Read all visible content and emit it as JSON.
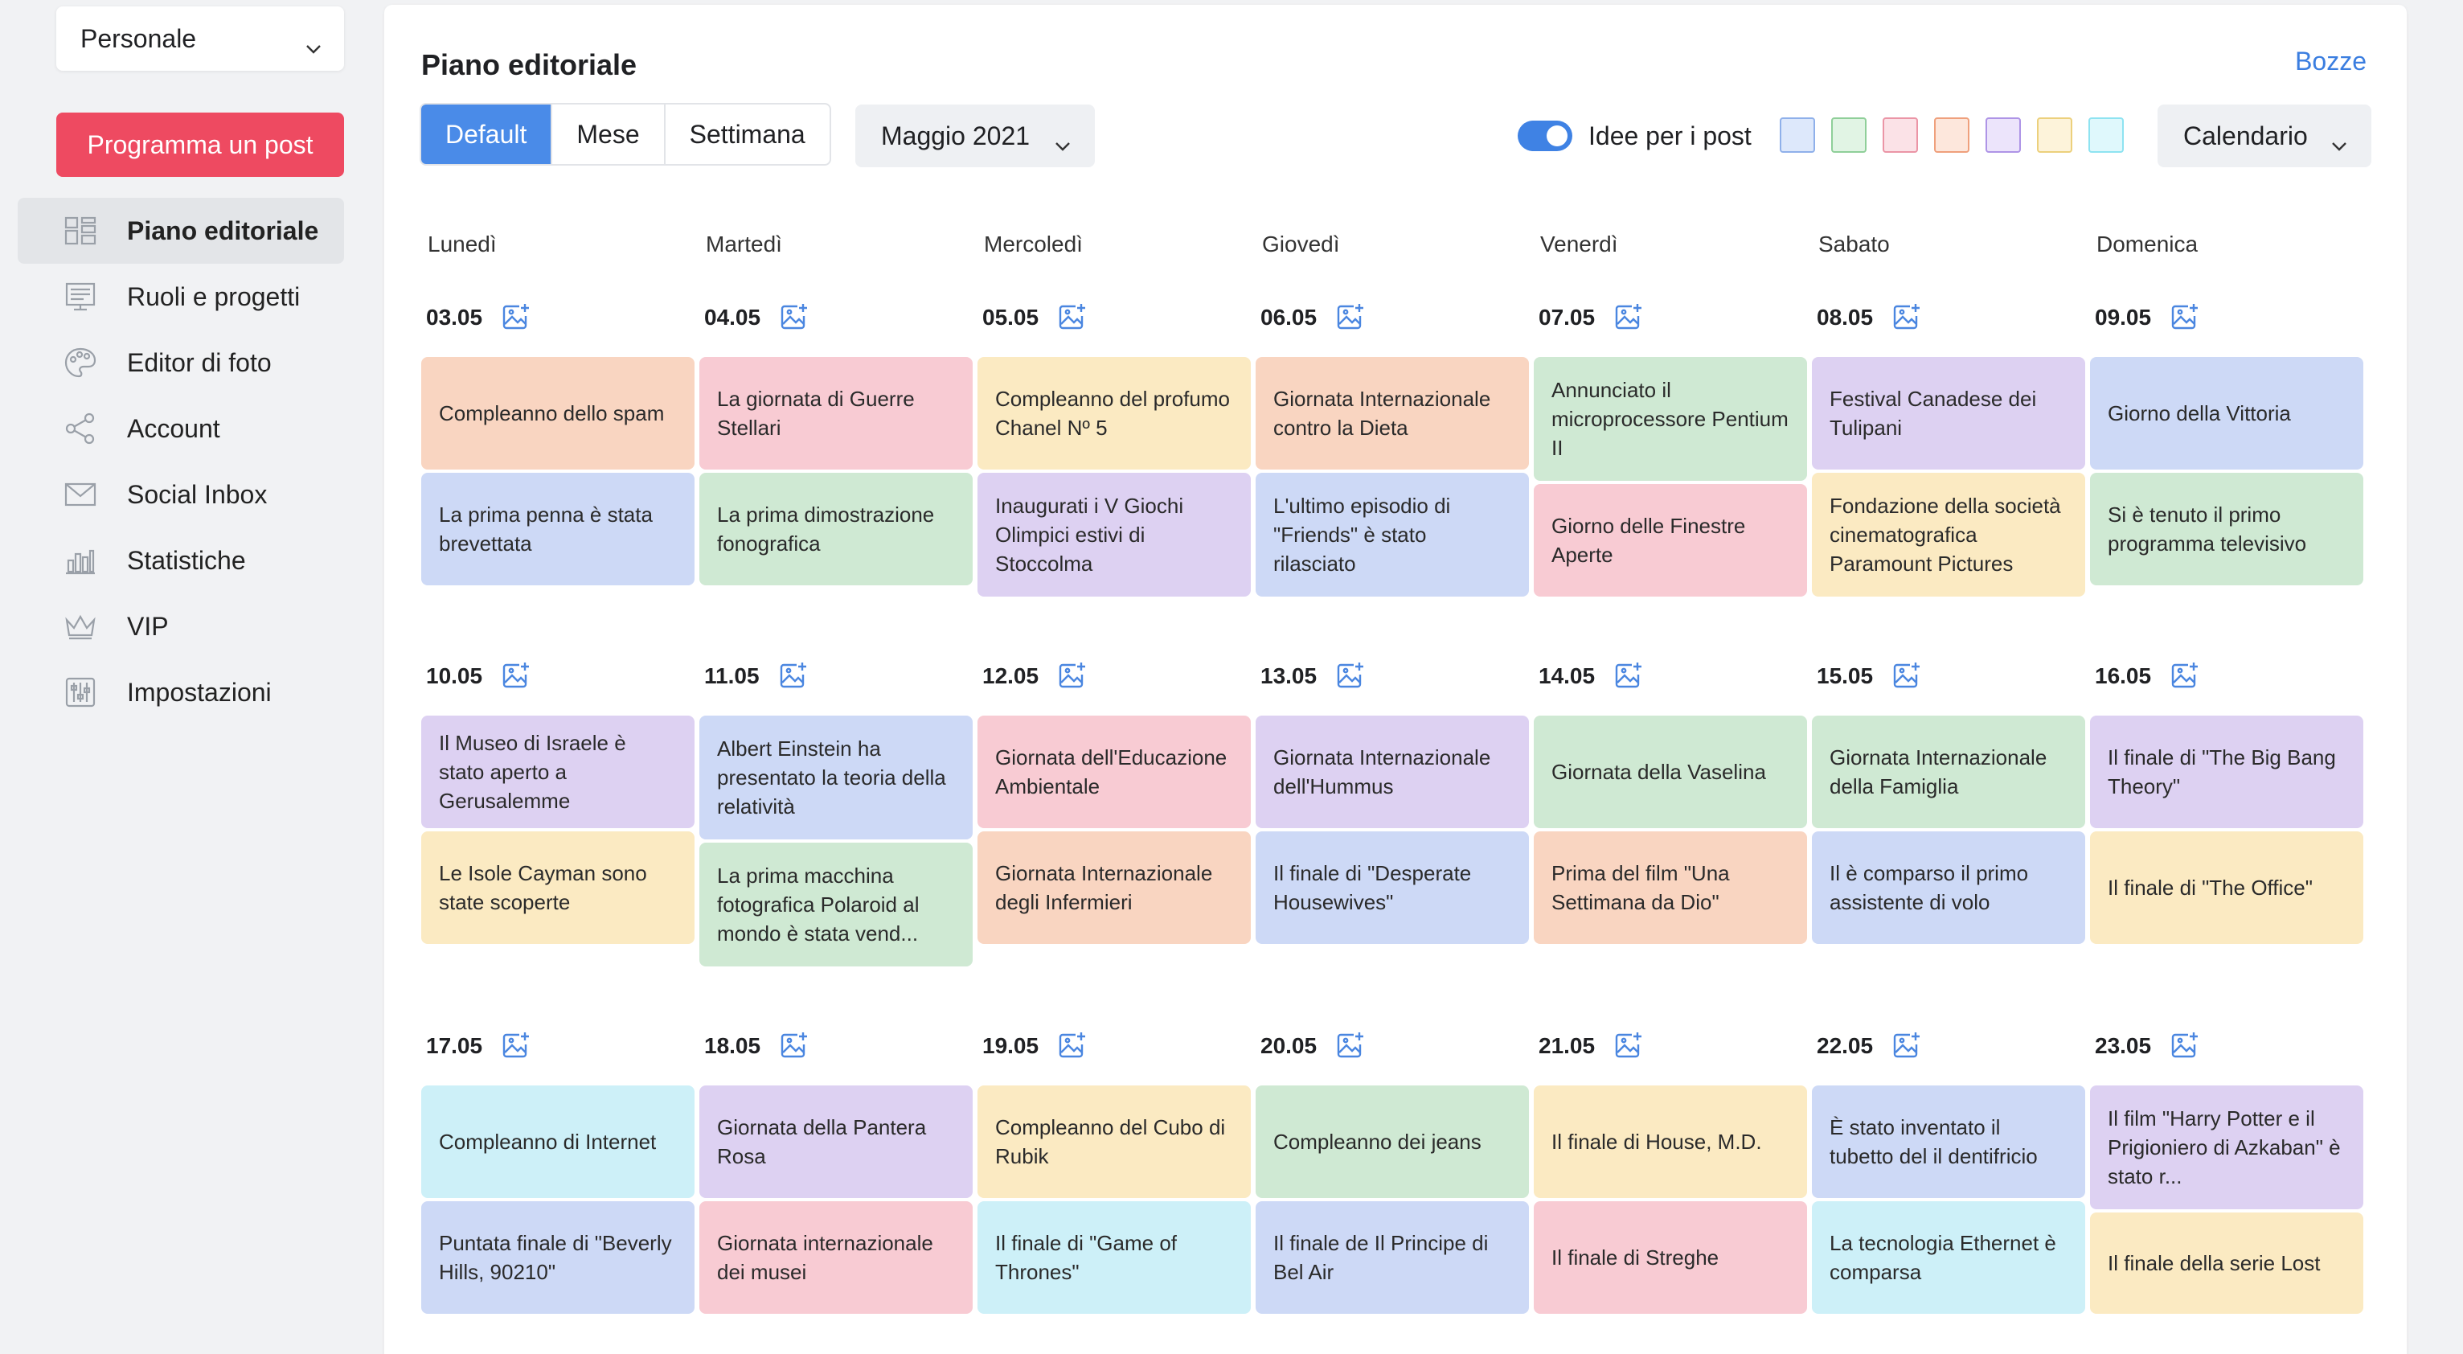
{
  "sidebar": {
    "account": "Personale",
    "cta": "Programma un post",
    "nav": [
      {
        "label": "Piano editoriale",
        "icon": "grid-icon"
      },
      {
        "label": "Ruoli e progetti",
        "icon": "board-icon"
      },
      {
        "label": "Editor di foto",
        "icon": "palette-icon"
      },
      {
        "label": "Account",
        "icon": "share-icon"
      },
      {
        "label": "Social Inbox",
        "icon": "envelope-icon"
      },
      {
        "label": "Statistiche",
        "icon": "bar-chart-icon"
      },
      {
        "label": "VIP",
        "icon": "crown-icon"
      },
      {
        "label": "Impostazioni",
        "icon": "sliders-icon"
      }
    ]
  },
  "header": {
    "title": "Piano editoriale",
    "drafts": "Bozze",
    "tabs": [
      "Default",
      "Mese",
      "Settimana"
    ],
    "month": "Maggio 2021",
    "ideas_toggle_label": "Idee per i post",
    "view_select": "Calendario"
  },
  "swatches": [
    {
      "fill": "#dde8fb",
      "border": "#8fb0ea"
    },
    {
      "fill": "#e1f4e4",
      "border": "#8fcf99"
    },
    {
      "fill": "#fbe2e7",
      "border": "#eb95a6"
    },
    {
      "fill": "#fde7dc",
      "border": "#efa07c"
    },
    {
      "fill": "#ece4fb",
      "border": "#ae94e6"
    },
    {
      "fill": "#fdf3da",
      "border": "#ecd07c"
    },
    {
      "fill": "#dff8fc",
      "border": "#8ee3f1"
    }
  ],
  "weekdays": [
    "Lunedì",
    "Martedì",
    "Mercoledì",
    "Giovedì",
    "Venerdì",
    "Sabato",
    "Domenica"
  ],
  "weeks": [
    {
      "dates": [
        "03.05",
        "04.05",
        "05.05",
        "06.05",
        "07.05",
        "08.05",
        "09.05"
      ],
      "days": [
        [
          {
            "text": "Compleanno dello spam",
            "color": "orange"
          },
          {
            "text": "La prima penna è stata brevettata",
            "color": "blue"
          }
        ],
        [
          {
            "text": "La giornata di Guerre Stellari",
            "color": "pink"
          },
          {
            "text": "La prima dimostrazione fonografica",
            "color": "green"
          }
        ],
        [
          {
            "text": "Compleanno del profumo Chanel Nº 5",
            "color": "yellow"
          },
          {
            "text": "Inaugurati i V Giochi Olimpici estivi di Stoccolma",
            "color": "purple"
          }
        ],
        [
          {
            "text": "Giornata Internazionale contro la Dieta",
            "color": "orange"
          },
          {
            "text": "L'ultimo episodio di \"Friends\" è stato rilasciato",
            "color": "blue"
          }
        ],
        [
          {
            "text": "Annunciato il microprocessore Pentium II",
            "color": "green"
          },
          {
            "text": "Giorno delle Finestre Aperte",
            "color": "pink"
          }
        ],
        [
          {
            "text": "Festival Canadese dei Tulipani",
            "color": "purple"
          },
          {
            "text": "Fondazione della società cinematografica Paramount Pictures",
            "color": "yellow"
          }
        ],
        [
          {
            "text": "Giorno della Vittoria",
            "color": "blue"
          },
          {
            "text": "Si è tenuto il primo programma televisivo",
            "color": "green"
          }
        ]
      ]
    },
    {
      "dates": [
        "10.05",
        "11.05",
        "12.05",
        "13.05",
        "14.05",
        "15.05",
        "16.05"
      ],
      "days": [
        [
          {
            "text": "Il Museo di Israele è stato aperto a Gerusalemme",
            "color": "purple"
          },
          {
            "text": "Le Isole Cayman sono state scoperte",
            "color": "yellow"
          }
        ],
        [
          {
            "text": "Albert Einstein ha presentato la teoria della relatività",
            "color": "blue"
          },
          {
            "text": "La prima macchina fotografica Polaroid al mondo è stata vend...",
            "color": "green"
          }
        ],
        [
          {
            "text": "Giornata dell'Educazione Ambientale",
            "color": "pink"
          },
          {
            "text": "Giornata Internazionale degli Infermieri",
            "color": "orange"
          }
        ],
        [
          {
            "text": "Giornata Internazionale dell'Hummus",
            "color": "purple"
          },
          {
            "text": "Il finale di \"Desperate Housewives\"",
            "color": "blue"
          }
        ],
        [
          {
            "text": "Giornata della Vaselina",
            "color": "green"
          },
          {
            "text": "Prima del film \"Una Settimana da Dio\"",
            "color": "orange"
          }
        ],
        [
          {
            "text": "Giornata Internazionale della Famiglia",
            "color": "green"
          },
          {
            "text": "Il è comparso il primo assistente di volo",
            "color": "blue"
          }
        ],
        [
          {
            "text": "Il finale di \"The Big Bang Theory\"",
            "color": "purple"
          },
          {
            "text": "Il finale di \"The Office\"",
            "color": "yellow"
          }
        ]
      ]
    },
    {
      "dates": [
        "17.05",
        "18.05",
        "19.05",
        "20.05",
        "21.05",
        "22.05",
        "23.05"
      ],
      "days": [
        [
          {
            "text": "Compleanno di Internet",
            "color": "cyan"
          },
          {
            "text": "Puntata finale di \"Beverly Hills, 90210\"",
            "color": "blue"
          }
        ],
        [
          {
            "text": "Giornata della Pantera Rosa",
            "color": "purple"
          },
          {
            "text": "Giornata internazionale dei musei",
            "color": "pink"
          }
        ],
        [
          {
            "text": "Compleanno del Cubo di Rubik",
            "color": "yellow"
          },
          {
            "text": "Il finale di \"Game of Thrones\"",
            "color": "cyan"
          }
        ],
        [
          {
            "text": "Compleanno dei jeans",
            "color": "green"
          },
          {
            "text": "Il finale de Il Principe di Bel Air",
            "color": "blue"
          }
        ],
        [
          {
            "text": "Il finale di House, M.D.",
            "color": "yellow"
          },
          {
            "text": "Il finale di Streghe",
            "color": "pink"
          }
        ],
        [
          {
            "text": "È stato inventato il tubetto del il dentifricio",
            "color": "blue"
          },
          {
            "text": "La tecnologia Ethernet è comparsa",
            "color": "cyan"
          }
        ],
        [
          {
            "text": "Il film \"Harry Potter e il Prigioniero di Azkaban\" è stato r...",
            "color": "purple"
          },
          {
            "text": "Il finale della serie Lost",
            "color": "yellow"
          }
        ]
      ]
    }
  ]
}
